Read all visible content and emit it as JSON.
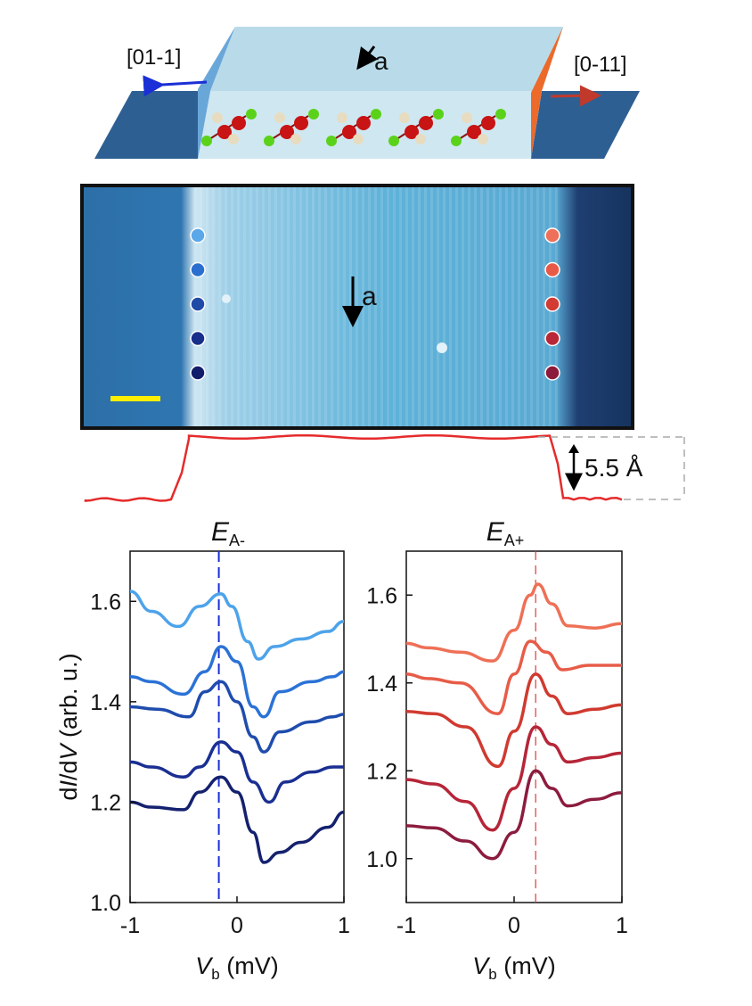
{
  "schematic": {
    "left_direction": "[01-1]",
    "right_direction": "[0-11]",
    "axis_label": "a"
  },
  "stm_image": {
    "axis_label": "a",
    "dots_left": [
      "#5aa8ea",
      "#2a6fd0",
      "#1f4aa8",
      "#172e8a",
      "#111c6a"
    ],
    "dots_right": [
      "#ee7058",
      "#e85a48",
      "#d23a32",
      "#b82838",
      "#8c1a3a"
    ]
  },
  "height_profile": {
    "step_label": "5.5 Å"
  },
  "colors": {
    "blue_marker": "#1a2fd6",
    "red_marker": "#e23a3a",
    "profile_line": "#e52b2b",
    "scale_bar": "#ffee00"
  },
  "chart_data": [
    {
      "type": "line",
      "title_main": "E",
      "title_sub": "A-",
      "xlabel_main": "V",
      "xlabel_sub": "b",
      "xlabel_unit": " (mV)",
      "ylabel_pre": "d",
      "ylabel_italic1": "I",
      "ylabel_mid": "/d",
      "ylabel_italic2": "V",
      "ylabel_post": " (arb. u.)",
      "xlim": [
        -1,
        1
      ],
      "ylim": [
        1.0,
        1.7
      ],
      "xticks": [
        "-1",
        "0",
        "1"
      ],
      "xtick_values": [
        -1,
        0,
        1
      ],
      "yticks": [
        "1.0",
        "1.2",
        "1.4",
        "1.6"
      ],
      "ytick_values": [
        1.0,
        1.2,
        1.4,
        1.6
      ],
      "marker_x": -0.17,
      "series": [
        {
          "color": "#4da3ea",
          "values": [
            [
              -1,
              1.62
            ],
            [
              -0.8,
              1.58
            ],
            [
              -0.55,
              1.55
            ],
            [
              -0.35,
              1.59
            ],
            [
              -0.15,
              1.615
            ],
            [
              -0.05,
              1.59
            ],
            [
              0.1,
              1.52
            ],
            [
              0.2,
              1.485
            ],
            [
              0.35,
              1.51
            ],
            [
              0.6,
              1.525
            ],
            [
              0.85,
              1.54
            ],
            [
              1,
              1.56
            ]
          ]
        },
        {
          "color": "#2b72d6",
          "values": [
            [
              -1,
              1.45
            ],
            [
              -0.8,
              1.44
            ],
            [
              -0.5,
              1.415
            ],
            [
              -0.3,
              1.46
            ],
            [
              -0.15,
              1.51
            ],
            [
              0,
              1.48
            ],
            [
              0.15,
              1.39
            ],
            [
              0.25,
              1.37
            ],
            [
              0.4,
              1.42
            ],
            [
              0.7,
              1.44
            ],
            [
              0.9,
              1.45
            ],
            [
              1,
              1.46
            ]
          ]
        },
        {
          "color": "#1f4cad",
          "values": [
            [
              -1,
              1.39
            ],
            [
              -0.75,
              1.385
            ],
            [
              -0.45,
              1.37
            ],
            [
              -0.3,
              1.42
            ],
            [
              -0.15,
              1.44
            ],
            [
              0,
              1.4
            ],
            [
              0.15,
              1.33
            ],
            [
              0.25,
              1.3
            ],
            [
              0.4,
              1.34
            ],
            [
              0.7,
              1.36
            ],
            [
              0.9,
              1.37
            ],
            [
              1,
              1.375
            ]
          ]
        },
        {
          "color": "#1a2f92",
          "values": [
            [
              -1,
              1.28
            ],
            [
              -0.8,
              1.27
            ],
            [
              -0.5,
              1.25
            ],
            [
              -0.35,
              1.27
            ],
            [
              -0.15,
              1.32
            ],
            [
              0,
              1.3
            ],
            [
              0.15,
              1.24
            ],
            [
              0.3,
              1.2
            ],
            [
              0.45,
              1.24
            ],
            [
              0.7,
              1.26
            ],
            [
              0.9,
              1.27
            ],
            [
              1,
              1.27
            ]
          ]
        },
        {
          "color": "#14216e",
          "values": [
            [
              -1,
              1.2
            ],
            [
              -0.8,
              1.19
            ],
            [
              -0.5,
              1.185
            ],
            [
              -0.35,
              1.22
            ],
            [
              -0.15,
              1.25
            ],
            [
              0,
              1.22
            ],
            [
              0.15,
              1.14
            ],
            [
              0.25,
              1.08
            ],
            [
              0.4,
              1.1
            ],
            [
              0.6,
              1.12
            ],
            [
              0.85,
              1.15
            ],
            [
              1,
              1.18
            ]
          ]
        }
      ]
    },
    {
      "type": "line",
      "title_main": "E",
      "title_sub": "A+",
      "xlabel_main": "V",
      "xlabel_sub": "b",
      "xlabel_unit": " (mV)",
      "xlim": [
        -1,
        1
      ],
      "ylim": [
        0.9,
        1.7
      ],
      "xticks": [
        "-1",
        "0",
        "1"
      ],
      "xtick_values": [
        -1,
        0,
        1
      ],
      "yticks": [
        "1.0",
        "1.2",
        "1.4",
        "1.6"
      ],
      "ytick_values": [
        1.0,
        1.2,
        1.4,
        1.6
      ],
      "marker_x": 0.2,
      "series": [
        {
          "color": "#ee7056",
          "values": [
            [
              -1,
              1.49
            ],
            [
              -0.8,
              1.48
            ],
            [
              -0.5,
              1.47
            ],
            [
              -0.2,
              1.45
            ],
            [
              0,
              1.52
            ],
            [
              0.15,
              1.6
            ],
            [
              0.22,
              1.625
            ],
            [
              0.35,
              1.58
            ],
            [
              0.5,
              1.53
            ],
            [
              0.75,
              1.525
            ],
            [
              1,
              1.535
            ]
          ]
        },
        {
          "color": "#e75c48",
          "values": [
            [
              -1,
              1.42
            ],
            [
              -0.8,
              1.41
            ],
            [
              -0.5,
              1.4
            ],
            [
              -0.15,
              1.33
            ],
            [
              0,
              1.42
            ],
            [
              0.15,
              1.495
            ],
            [
              0.3,
              1.47
            ],
            [
              0.45,
              1.43
            ],
            [
              0.7,
              1.44
            ],
            [
              1,
              1.44
            ]
          ]
        },
        {
          "color": "#d03a30",
          "values": [
            [
              -1,
              1.335
            ],
            [
              -0.75,
              1.33
            ],
            [
              -0.45,
              1.3
            ],
            [
              -0.15,
              1.21
            ],
            [
              0,
              1.29
            ],
            [
              0.2,
              1.42
            ],
            [
              0.35,
              1.37
            ],
            [
              0.5,
              1.33
            ],
            [
              0.75,
              1.34
            ],
            [
              1,
              1.35
            ]
          ]
        },
        {
          "color": "#b62538",
          "values": [
            [
              -1,
              1.18
            ],
            [
              -0.75,
              1.17
            ],
            [
              -0.45,
              1.13
            ],
            [
              -0.2,
              1.065
            ],
            [
              0,
              1.16
            ],
            [
              0.2,
              1.3
            ],
            [
              0.35,
              1.26
            ],
            [
              0.5,
              1.22
            ],
            [
              0.75,
              1.23
            ],
            [
              1,
              1.24
            ]
          ]
        },
        {
          "color": "#8c1c3e",
          "values": [
            [
              -1,
              1.075
            ],
            [
              -0.75,
              1.07
            ],
            [
              -0.45,
              1.04
            ],
            [
              -0.2,
              1.0
            ],
            [
              0,
              1.06
            ],
            [
              0.2,
              1.2
            ],
            [
              0.35,
              1.16
            ],
            [
              0.5,
              1.12
            ],
            [
              0.75,
              1.135
            ],
            [
              1,
              1.15
            ]
          ]
        }
      ]
    }
  ]
}
